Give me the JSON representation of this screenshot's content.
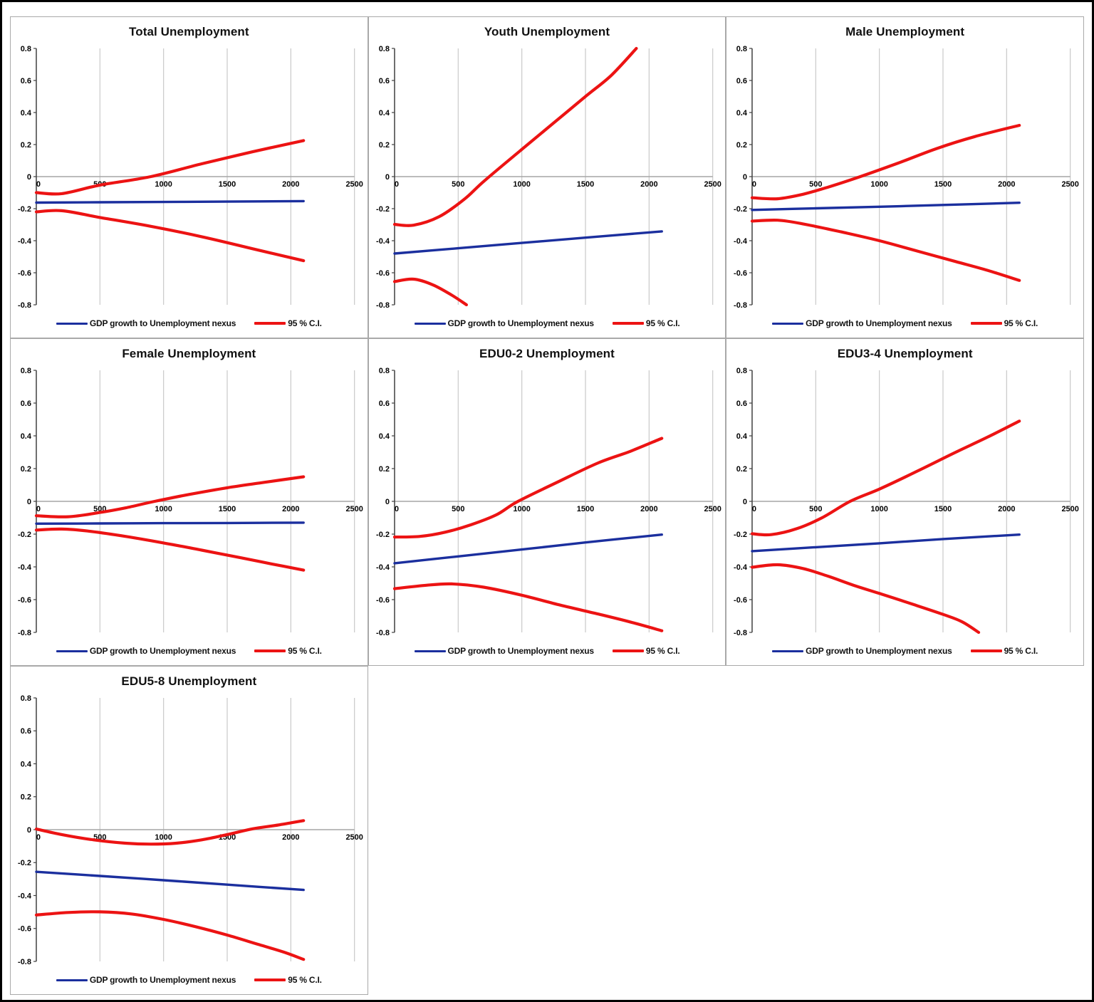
{
  "legend": {
    "nexus_label": "GDP growth to Unemployment nexus",
    "ci_label": "95 % C.I."
  },
  "colors": {
    "nexus": "#1B2F9E",
    "ci": "#EC1313",
    "grid": "#c9c9c9",
    "zero_line": "#a6a6a6",
    "y_axis": "#3f3f3f",
    "tick_text": "#000000"
  },
  "axes": {
    "xlim": [
      0,
      2500
    ],
    "ylim": [
      -0.8,
      0.8
    ],
    "x_ticks": [
      0,
      500,
      1000,
      1500,
      2000,
      2500
    ],
    "y_ticks": [
      0.8,
      0.6,
      0.4,
      0.2,
      0,
      -0.2,
      -0.4,
      -0.6,
      -0.8
    ],
    "grid": "vertical-only",
    "legend_position": "bottom"
  },
  "chart_data": [
    {
      "type": "line",
      "title": "Total Unemployment",
      "series": {
        "nexus": [
          [
            0,
            -0.162
          ],
          [
            500,
            -0.16
          ],
          [
            1000,
            -0.158
          ],
          [
            1500,
            -0.156
          ],
          [
            2100,
            -0.153
          ]
        ],
        "ci_upper": [
          [
            0,
            -0.1
          ],
          [
            200,
            -0.106
          ],
          [
            500,
            -0.053
          ],
          [
            900,
            0.0
          ],
          [
            1300,
            0.08
          ],
          [
            1700,
            0.155
          ],
          [
            2100,
            0.225
          ]
        ],
        "ci_lower": [
          [
            0,
            -0.22
          ],
          [
            200,
            -0.213
          ],
          [
            500,
            -0.255
          ],
          [
            900,
            -0.31
          ],
          [
            1300,
            -0.375
          ],
          [
            1700,
            -0.45
          ],
          [
            2100,
            -0.525
          ]
        ]
      }
    },
    {
      "type": "line",
      "title": "Youth Unemployment",
      "series": {
        "nexus": [
          [
            0,
            -0.48
          ],
          [
            500,
            -0.447
          ],
          [
            1000,
            -0.414
          ],
          [
            1500,
            -0.381
          ],
          [
            2100,
            -0.342
          ]
        ],
        "ci_upper": [
          [
            0,
            -0.298
          ],
          [
            150,
            -0.303
          ],
          [
            350,
            -0.25
          ],
          [
            550,
            -0.14
          ],
          [
            700,
            -0.03
          ],
          [
            1000,
            0.17
          ],
          [
            1250,
            0.335
          ],
          [
            1500,
            0.5
          ],
          [
            1700,
            0.63
          ],
          [
            1900,
            0.8
          ]
        ],
        "ci_lower": [
          [
            0,
            -0.655
          ],
          [
            150,
            -0.64
          ],
          [
            300,
            -0.675
          ],
          [
            450,
            -0.74
          ],
          [
            565,
            -0.8
          ]
        ]
      }
    },
    {
      "type": "line",
      "title": "Male Unemployment",
      "series": {
        "nexus": [
          [
            0,
            -0.208
          ],
          [
            500,
            -0.198
          ],
          [
            1000,
            -0.188
          ],
          [
            1500,
            -0.177
          ],
          [
            2100,
            -0.163
          ]
        ],
        "ci_upper": [
          [
            0,
            -0.132
          ],
          [
            200,
            -0.138
          ],
          [
            400,
            -0.11
          ],
          [
            600,
            -0.065
          ],
          [
            850,
            0.0
          ],
          [
            1150,
            0.085
          ],
          [
            1450,
            0.175
          ],
          [
            1750,
            0.25
          ],
          [
            2100,
            0.32
          ]
        ],
        "ci_lower": [
          [
            0,
            -0.278
          ],
          [
            200,
            -0.272
          ],
          [
            400,
            -0.295
          ],
          [
            700,
            -0.345
          ],
          [
            1000,
            -0.4
          ],
          [
            1300,
            -0.465
          ],
          [
            1600,
            -0.53
          ],
          [
            1850,
            -0.585
          ],
          [
            2100,
            -0.648
          ]
        ]
      }
    },
    {
      "type": "line",
      "title": "Female Unemployment",
      "series": {
        "nexus": [
          [
            0,
            -0.136
          ],
          [
            500,
            -0.135
          ],
          [
            1000,
            -0.133
          ],
          [
            1500,
            -0.132
          ],
          [
            2100,
            -0.13
          ]
        ],
        "ci_upper": [
          [
            0,
            -0.088
          ],
          [
            250,
            -0.094
          ],
          [
            500,
            -0.068
          ],
          [
            700,
            -0.04
          ],
          [
            930,
            0.0
          ],
          [
            1200,
            0.042
          ],
          [
            1500,
            0.083
          ],
          [
            1800,
            0.117
          ],
          [
            2100,
            0.15
          ]
        ],
        "ci_lower": [
          [
            0,
            -0.175
          ],
          [
            200,
            -0.169
          ],
          [
            400,
            -0.181
          ],
          [
            700,
            -0.214
          ],
          [
            1000,
            -0.254
          ],
          [
            1300,
            -0.298
          ],
          [
            1600,
            -0.343
          ],
          [
            1850,
            -0.382
          ],
          [
            2100,
            -0.42
          ]
        ]
      }
    },
    {
      "type": "line",
      "title": "EDU0-2 Unemployment",
      "series": {
        "nexus": [
          [
            0,
            -0.378
          ],
          [
            500,
            -0.336
          ],
          [
            1000,
            -0.294
          ],
          [
            1500,
            -0.251
          ],
          [
            2100,
            -0.203
          ]
        ],
        "ci_upper": [
          [
            0,
            -0.218
          ],
          [
            200,
            -0.214
          ],
          [
            400,
            -0.188
          ],
          [
            600,
            -0.143
          ],
          [
            800,
            -0.082
          ],
          [
            970,
            0.0
          ],
          [
            1300,
            0.125
          ],
          [
            1600,
            0.235
          ],
          [
            1850,
            0.305
          ],
          [
            2100,
            0.385
          ]
        ],
        "ci_lower": [
          [
            0,
            -0.533
          ],
          [
            250,
            -0.512
          ],
          [
            450,
            -0.504
          ],
          [
            700,
            -0.524
          ],
          [
            1000,
            -0.573
          ],
          [
            1300,
            -0.633
          ],
          [
            1600,
            -0.688
          ],
          [
            1850,
            -0.736
          ],
          [
            2100,
            -0.79
          ]
        ]
      }
    },
    {
      "type": "line",
      "title": "EDU3-4 Unemployment",
      "series": {
        "nexus": [
          [
            0,
            -0.304
          ],
          [
            500,
            -0.28
          ],
          [
            1000,
            -0.256
          ],
          [
            1500,
            -0.23
          ],
          [
            2100,
            -0.203
          ]
        ],
        "ci_upper": [
          [
            0,
            -0.198
          ],
          [
            150,
            -0.203
          ],
          [
            350,
            -0.167
          ],
          [
            550,
            -0.1
          ],
          [
            770,
            0.0
          ],
          [
            1000,
            0.075
          ],
          [
            1300,
            0.185
          ],
          [
            1600,
            0.3
          ],
          [
            1850,
            0.392
          ],
          [
            2100,
            0.49
          ]
        ],
        "ci_lower": [
          [
            0,
            -0.402
          ],
          [
            200,
            -0.387
          ],
          [
            400,
            -0.41
          ],
          [
            600,
            -0.458
          ],
          [
            800,
            -0.513
          ],
          [
            1000,
            -0.562
          ],
          [
            1250,
            -0.625
          ],
          [
            1500,
            -0.69
          ],
          [
            1650,
            -0.735
          ],
          [
            1780,
            -0.8
          ]
        ]
      }
    },
    {
      "type": "line",
      "title": "EDU5-8 Unemployment",
      "series": {
        "nexus": [
          [
            0,
            -0.256
          ],
          [
            500,
            -0.281
          ],
          [
            1000,
            -0.307
          ],
          [
            1500,
            -0.334
          ],
          [
            2100,
            -0.366
          ]
        ],
        "ci_upper": [
          [
            0,
            0.004
          ],
          [
            200,
            -0.03
          ],
          [
            450,
            -0.062
          ],
          [
            700,
            -0.082
          ],
          [
            900,
            -0.088
          ],
          [
            1100,
            -0.082
          ],
          [
            1300,
            -0.062
          ],
          [
            1500,
            -0.03
          ],
          [
            1700,
            0.005
          ],
          [
            1900,
            0.028
          ],
          [
            2100,
            0.055
          ]
        ],
        "ci_lower": [
          [
            0,
            -0.518
          ],
          [
            250,
            -0.503
          ],
          [
            500,
            -0.499
          ],
          [
            750,
            -0.512
          ],
          [
            1000,
            -0.545
          ],
          [
            1250,
            -0.589
          ],
          [
            1500,
            -0.64
          ],
          [
            1750,
            -0.698
          ],
          [
            1950,
            -0.745
          ],
          [
            2100,
            -0.788
          ]
        ]
      }
    }
  ]
}
